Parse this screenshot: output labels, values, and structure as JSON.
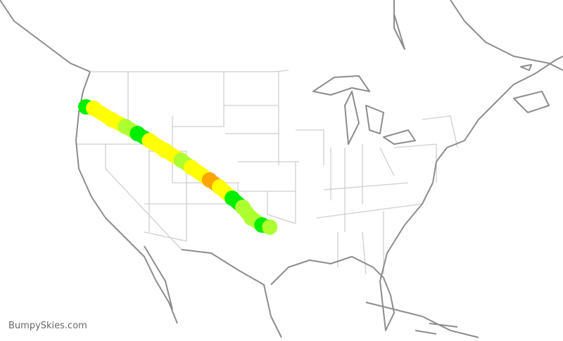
{
  "watermark": "BumpySkies.com",
  "legend_colors": {
    "smooth": "#00ee00",
    "light": "#adff2f",
    "moderate": "#ffff00",
    "heavy": "#ffa500"
  },
  "route": [
    {
      "lon": -122.7,
      "lat": 45.5,
      "level": "smooth"
    },
    {
      "lon": -121.6,
      "lat": 45.35,
      "level": "moderate"
    },
    {
      "lon": -119.1,
      "lat": 44.16,
      "level": "moderate"
    },
    {
      "lon": -117.1,
      "lat": 43.41,
      "level": "light"
    },
    {
      "lon": -115.4,
      "lat": 42.66,
      "level": "smooth"
    },
    {
      "lon": -113.7,
      "lat": 41.92,
      "level": "moderate"
    },
    {
      "lon": -111.5,
      "lat": 40.87,
      "level": "moderate"
    },
    {
      "lon": -109.2,
      "lat": 39.83,
      "level": "light"
    },
    {
      "lon": -107.8,
      "lat": 39.08,
      "level": "moderate"
    },
    {
      "lon": -105.2,
      "lat": 37.74,
      "level": "heavy"
    },
    {
      "lon": -103.8,
      "lat": 36.99,
      "level": "moderate"
    },
    {
      "lon": -102.0,
      "lat": 35.8,
      "level": "smooth"
    },
    {
      "lon": -100.5,
      "lat": 34.83,
      "level": "light"
    },
    {
      "lon": -99.3,
      "lat": 33.7,
      "level": "light"
    },
    {
      "lon": -97.8,
      "lat": 32.96,
      "level": "smooth"
    },
    {
      "lon": -96.7,
      "lat": 32.74,
      "level": "light"
    }
  ]
}
